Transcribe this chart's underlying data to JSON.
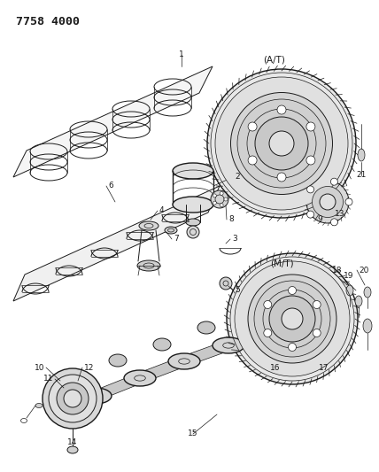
{
  "title": "7758 4000",
  "bg_color": "#ffffff",
  "line_color": "#1a1a1a",
  "fig_width": 4.28,
  "fig_height": 5.33,
  "dpi": 100,
  "label_fontsize": 6.5,
  "at_mt_fontsize": 7.5
}
